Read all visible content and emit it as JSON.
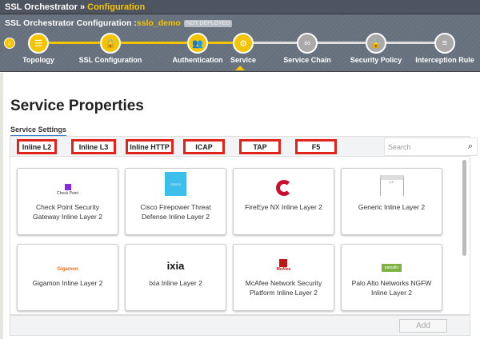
{
  "breadcrumb": {
    "root": "SSL Orchestrator",
    "sep": "»",
    "current": "Configuration"
  },
  "config": {
    "label": "SSL Orchestrator Configuration :",
    "name": "sslo_demo",
    "status": "NOT DEPLOYED"
  },
  "steps": [
    {
      "label": "Topology",
      "icon": "server-icon",
      "done": true
    },
    {
      "label": "SSL Configuration",
      "icon": "lock-icon",
      "done": true
    },
    {
      "label": "Authentication",
      "icon": "users-icon",
      "done": true
    },
    {
      "label": "Service",
      "icon": "gears-icon",
      "done": true,
      "current": true
    },
    {
      "label": "Service Chain",
      "icon": "link-icon",
      "done": false
    },
    {
      "label": "Security Policy",
      "icon": "lock-icon",
      "done": false
    },
    {
      "label": "Interception Rule",
      "icon": "list-icon",
      "done": false
    }
  ],
  "page_title": "Service Properties",
  "section": "Service Settings",
  "tabs": [
    "Inline L2",
    "Inline L3",
    "Inline HTTP",
    "ICAP",
    "TAP",
    "F5"
  ],
  "active_tab": "Inline L2",
  "search": {
    "placeholder": "Search"
  },
  "cards": [
    {
      "name": "Check Point Security Gateway Inline Layer 2",
      "logo": "Check Point"
    },
    {
      "name": "Cisco Firepower Threat Defense Inline Layer 2",
      "logo": "CISCO"
    },
    {
      "name": "FireEye NX Inline Layer 2",
      "logo": ""
    },
    {
      "name": "Generic Inline Layer 2",
      "logo": "L2"
    },
    {
      "name": "Gigamon Inline Layer 2",
      "logo": "Gigamon"
    },
    {
      "name": "Ixia Inline Layer 2",
      "logo": "ixia"
    },
    {
      "name": "McAfee Network Security Platform Inline Layer 2",
      "logo": "McAfee"
    },
    {
      "name": "Palo Alto Networks NGFW Inline Layer 2",
      "logo": "paloalto"
    }
  ],
  "add_label": "Add",
  "colors": {
    "accent": "#f5c400",
    "highlight": "#e0241b"
  }
}
